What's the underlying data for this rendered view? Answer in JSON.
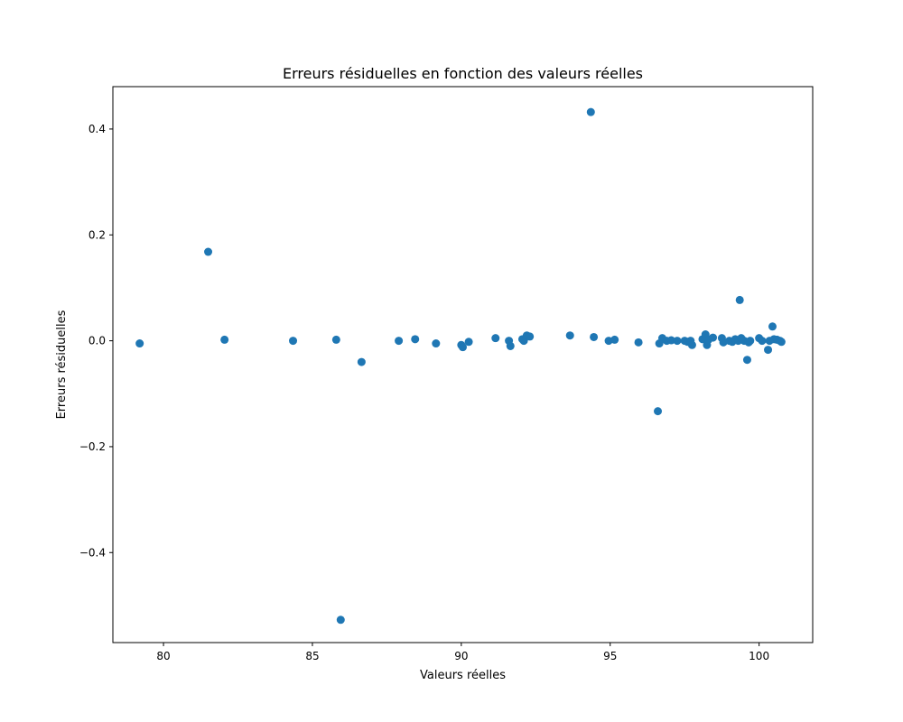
{
  "chart_data": {
    "type": "scatter",
    "title": "Erreurs résiduelles en fonction des valeurs réelles",
    "xlabel": "Valeurs réelles",
    "ylabel": "Erreurs résiduelles",
    "xlim": [
      78.3,
      101.8
    ],
    "ylim": [
      -0.57,
      0.48
    ],
    "x_ticks": [
      80,
      85,
      90,
      95,
      100
    ],
    "x_tick_labels": [
      "80",
      "85",
      "90",
      "95",
      "100"
    ],
    "y_ticks": [
      -0.4,
      -0.2,
      0.0,
      0.2,
      0.4
    ],
    "y_tick_labels": [
      "−0.4",
      "−0.2",
      "0.0",
      "0.2",
      "0.4"
    ],
    "grid": false,
    "marker_color": "#1f77b4",
    "x": [
      79.2,
      81.5,
      82.05,
      84.35,
      85.8,
      85.95,
      86.65,
      87.9,
      88.45,
      89.15,
      90.0,
      90.05,
      90.25,
      91.15,
      91.6,
      91.65,
      92.05,
      92.1,
      92.2,
      92.3,
      93.65,
      94.35,
      94.45,
      94.95,
      95.15,
      95.95,
      96.6,
      96.65,
      96.75,
      96.9,
      97.05,
      97.25,
      97.5,
      97.6,
      97.7,
      97.75,
      98.1,
      98.2,
      98.25,
      98.3,
      98.45,
      98.75,
      98.8,
      99.0,
      99.1,
      99.2,
      99.3,
      99.35,
      99.4,
      99.5,
      99.6,
      99.65,
      99.7,
      100.0,
      100.1,
      100.3,
      100.35,
      100.45,
      100.5,
      100.6,
      100.7,
      100.75
    ],
    "y": [
      -0.005,
      0.168,
      0.002,
      0.0,
      0.002,
      -0.527,
      -0.04,
      0.0,
      0.003,
      -0.005,
      -0.008,
      -0.012,
      -0.002,
      0.005,
      0.0,
      -0.01,
      0.003,
      0.0,
      0.01,
      0.008,
      0.01,
      0.432,
      0.007,
      0.0,
      0.002,
      -0.003,
      -0.133,
      -0.005,
      0.005,
      0.0,
      0.001,
      0.0,
      0.0,
      -0.002,
      0.0,
      -0.008,
      0.003,
      0.012,
      -0.008,
      0.002,
      0.006,
      0.005,
      -0.003,
      0.0,
      -0.002,
      0.003,
      0.0,
      0.077,
      0.005,
      0.0,
      -0.036,
      -0.003,
      0.0,
      0.005,
      0.0,
      -0.017,
      0.0,
      0.027,
      0.003,
      0.002,
      0.0,
      -0.002
    ]
  }
}
